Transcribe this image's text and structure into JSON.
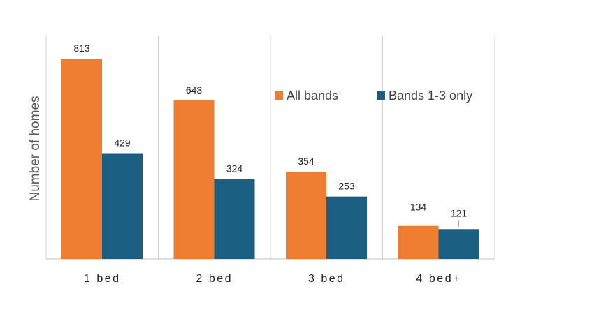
{
  "chart_data": {
    "type": "bar",
    "title": "",
    "xlabel": "",
    "ylabel": "Number of homes",
    "categories": [
      "1 bed",
      "2 bed",
      "3 bed",
      "4 bed+"
    ],
    "series": [
      {
        "name": "All bands",
        "values": [
          813,
          643,
          354,
          134
        ],
        "color": "#ED7D31"
      },
      {
        "name": "Bands 1-3 only",
        "values": [
          429,
          324,
          253,
          121
        ],
        "color": "#1A5E82"
      }
    ],
    "ylim": [
      0,
      850
    ],
    "grid": false,
    "legend": "top-right",
    "data_labels": true
  }
}
